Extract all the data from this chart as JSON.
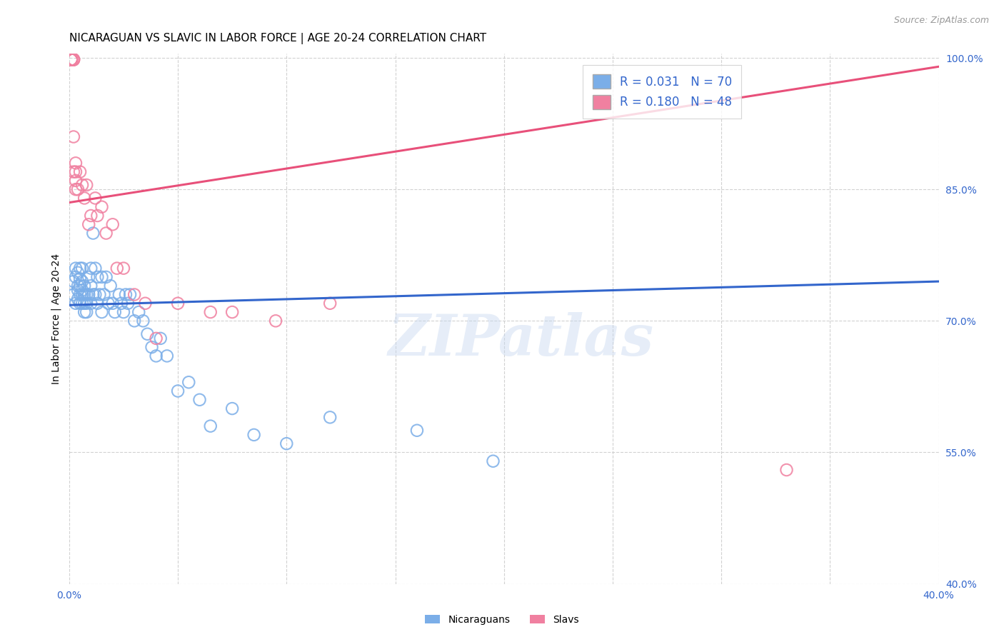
{
  "title": "NICARAGUAN VS SLAVIC IN LABOR FORCE | AGE 20-24 CORRELATION CHART",
  "source": "Source: ZipAtlas.com",
  "ylabel": "In Labor Force | Age 20-24",
  "xlim": [
    0.0,
    0.4
  ],
  "ylim": [
    0.4,
    1.005
  ],
  "xticks": [
    0.0,
    0.05,
    0.1,
    0.15,
    0.2,
    0.25,
    0.3,
    0.35,
    0.4
  ],
  "xtick_labels": [
    "0.0%",
    "",
    "",
    "",
    "",
    "",
    "",
    "",
    "40.0%"
  ],
  "yticks": [
    0.4,
    0.55,
    0.7,
    0.85,
    1.0
  ],
  "ytick_labels": [
    "40.0%",
    "55.0%",
    "70.0%",
    "85.0%",
    "100.0%"
  ],
  "blue_R": 0.031,
  "blue_N": 70,
  "pink_R": 0.18,
  "pink_N": 48,
  "blue_color": "#7BAEE8",
  "pink_color": "#F080A0",
  "blue_line_color": "#3366CC",
  "pink_line_color": "#E8507A",
  "blue_scatter_x": [
    0.002,
    0.002,
    0.003,
    0.003,
    0.003,
    0.004,
    0.004,
    0.004,
    0.004,
    0.005,
    0.005,
    0.005,
    0.005,
    0.005,
    0.006,
    0.006,
    0.006,
    0.006,
    0.006,
    0.007,
    0.007,
    0.007,
    0.007,
    0.008,
    0.008,
    0.008,
    0.009,
    0.009,
    0.01,
    0.01,
    0.01,
    0.011,
    0.011,
    0.012,
    0.012,
    0.013,
    0.013,
    0.014,
    0.015,
    0.015,
    0.016,
    0.017,
    0.018,
    0.019,
    0.02,
    0.021,
    0.023,
    0.024,
    0.025,
    0.026,
    0.027,
    0.028,
    0.03,
    0.032,
    0.034,
    0.036,
    0.038,
    0.04,
    0.042,
    0.045,
    0.05,
    0.055,
    0.06,
    0.065,
    0.075,
    0.085,
    0.1,
    0.12,
    0.16,
    0.195
  ],
  "blue_scatter_y": [
    0.73,
    0.745,
    0.72,
    0.75,
    0.76,
    0.725,
    0.74,
    0.755,
    0.735,
    0.73,
    0.748,
    0.72,
    0.76,
    0.74,
    0.73,
    0.72,
    0.745,
    0.76,
    0.735,
    0.73,
    0.72,
    0.71,
    0.74,
    0.73,
    0.72,
    0.71,
    0.75,
    0.73,
    0.76,
    0.74,
    0.72,
    0.8,
    0.73,
    0.76,
    0.73,
    0.75,
    0.72,
    0.73,
    0.75,
    0.71,
    0.73,
    0.75,
    0.72,
    0.74,
    0.72,
    0.71,
    0.73,
    0.72,
    0.71,
    0.73,
    0.72,
    0.73,
    0.7,
    0.71,
    0.7,
    0.685,
    0.67,
    0.66,
    0.68,
    0.66,
    0.62,
    0.63,
    0.61,
    0.58,
    0.6,
    0.57,
    0.56,
    0.59,
    0.575,
    0.54
  ],
  "pink_scatter_x": [
    0.001,
    0.001,
    0.001,
    0.001,
    0.001,
    0.001,
    0.001,
    0.001,
    0.001,
    0.001,
    0.001,
    0.001,
    0.001,
    0.002,
    0.002,
    0.002,
    0.002,
    0.002,
    0.002,
    0.002,
    0.002,
    0.003,
    0.003,
    0.003,
    0.003,
    0.004,
    0.005,
    0.006,
    0.007,
    0.008,
    0.009,
    0.01,
    0.012,
    0.013,
    0.015,
    0.017,
    0.02,
    0.022,
    0.025,
    0.03,
    0.035,
    0.04,
    0.05,
    0.065,
    0.075,
    0.095,
    0.12,
    0.33
  ],
  "pink_scatter_y": [
    0.998,
    0.998,
    0.998,
    0.998,
    0.998,
    0.998,
    0.998,
    0.998,
    0.998,
    0.998,
    0.998,
    0.998,
    0.998,
    0.998,
    0.998,
    0.998,
    0.998,
    0.998,
    0.998,
    0.91,
    0.87,
    0.88,
    0.87,
    0.86,
    0.85,
    0.85,
    0.87,
    0.855,
    0.84,
    0.855,
    0.81,
    0.82,
    0.84,
    0.82,
    0.83,
    0.8,
    0.81,
    0.76,
    0.76,
    0.73,
    0.72,
    0.68,
    0.72,
    0.71,
    0.71,
    0.7,
    0.72,
    0.53
  ],
  "blue_trend_x": [
    0.0,
    0.4
  ],
  "blue_trend_y": [
    0.718,
    0.745
  ],
  "pink_trend_x": [
    0.0,
    0.4
  ],
  "pink_trend_y": [
    0.835,
    0.99
  ],
  "watermark": "ZIPatlas",
  "background_color": "#FFFFFF",
  "grid_color": "#CCCCCC",
  "title_fontsize": 11,
  "axis_label_fontsize": 10,
  "tick_fontsize": 10,
  "legend_fontsize": 12
}
